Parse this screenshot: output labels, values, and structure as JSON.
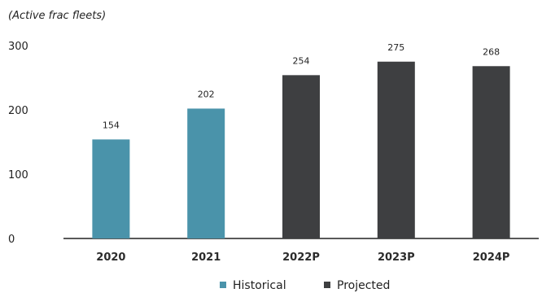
{
  "chart_data": {
    "type": "bar",
    "unit_label": "(Active frac fleets)",
    "categories": [
      "2020",
      "2021",
      "2022P",
      "2023P",
      "2024P"
    ],
    "values": [
      154,
      202,
      254,
      275,
      268
    ],
    "value_labels": [
      "154",
      "202",
      "254",
      "275",
      "268"
    ],
    "groups": [
      "Historical",
      "Historical",
      "Projected",
      "Projected",
      "Projected"
    ],
    "ylim": [
      0,
      300
    ],
    "yticks": [
      0,
      100,
      200,
      300
    ],
    "ytick_labels": [
      "0",
      "100",
      "200",
      "300"
    ],
    "grid": false,
    "legend": {
      "position": "bottom-center",
      "items": [
        {
          "name": "Historical",
          "color": "#4a93aa"
        },
        {
          "name": "Projected",
          "color": "#3e3f41"
        }
      ]
    }
  }
}
